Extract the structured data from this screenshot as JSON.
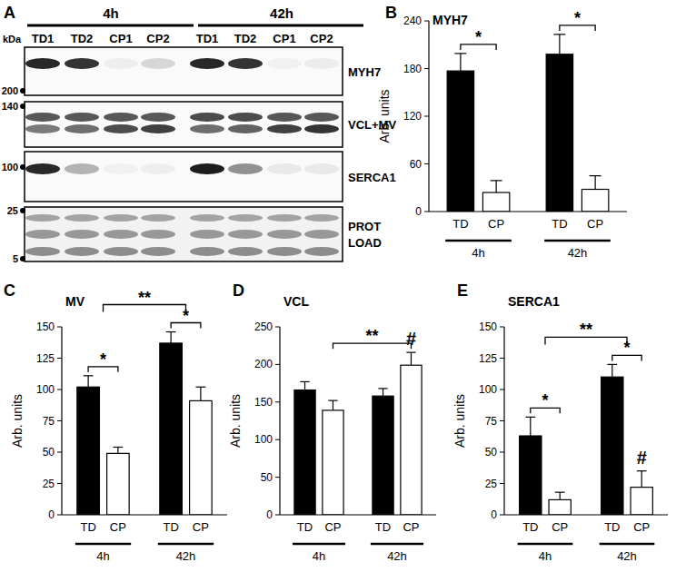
{
  "blot_panel": {
    "panel": "A",
    "headers": [
      "4h",
      "42h"
    ],
    "lanes": [
      "TD1",
      "TD2",
      "CP1",
      "CP2",
      "TD1",
      "TD2",
      "CP1",
      "CP2"
    ],
    "unit": "kDa",
    "markers": [
      200,
      140,
      100,
      25,
      5
    ],
    "rows": [
      [
        "MYH7"
      ],
      [
        "VCL+MV"
      ],
      [
        "SERCA1"
      ],
      [
        "PROT",
        "LOAD"
      ]
    ]
  },
  "chart_data": [
    {
      "type": "bar",
      "panel": "B",
      "title": "MYH7",
      "ylabel": "Arb. units",
      "categories": [
        "TD",
        "CP",
        "TD",
        "CP"
      ],
      "groups": [
        "4h",
        "42h"
      ],
      "values": [
        177,
        24,
        198,
        28
      ],
      "errors": [
        22,
        15,
        25,
        17
      ],
      "colors": [
        "#000000",
        "#ffffff",
        "#000000",
        "#ffffff"
      ],
      "ylim": [
        0,
        240
      ],
      "yticks": [
        0,
        60,
        120,
        180,
        240
      ],
      "grid": false,
      "annotations": [
        {
          "text": "*",
          "bars": [
            0,
            1
          ]
        },
        {
          "text": "*",
          "bars": [
            2,
            3
          ]
        }
      ]
    },
    {
      "type": "bar",
      "panel": "C",
      "title": "MV",
      "ylabel": "Arb. units",
      "categories": [
        "TD",
        "CP",
        "TD",
        "CP"
      ],
      "groups": [
        "4h",
        "42h"
      ],
      "values": [
        102,
        49,
        137,
        91
      ],
      "errors": [
        9,
        5,
        9,
        11
      ],
      "colors": [
        "#000000",
        "#ffffff",
        "#000000",
        "#ffffff"
      ],
      "ylim": [
        0,
        150
      ],
      "yticks": [
        0,
        25,
        50,
        75,
        100,
        125,
        150
      ],
      "grid": false,
      "annotations": [
        {
          "text": "*",
          "bars": [
            0,
            1
          ]
        },
        {
          "text": "*",
          "bars": [
            2,
            3
          ]
        },
        {
          "text": "**",
          "groups": [
            0,
            1
          ]
        }
      ]
    },
    {
      "type": "bar",
      "panel": "D",
      "title": "VCL",
      "ylabel": "Arb. units",
      "categories": [
        "TD",
        "CP",
        "TD",
        "CP"
      ],
      "groups": [
        "4h",
        "42h"
      ],
      "values": [
        166,
        139,
        158,
        199
      ],
      "errors": [
        11,
        13,
        10,
        17
      ],
      "colors": [
        "#000000",
        "#ffffff",
        "#000000",
        "#ffffff"
      ],
      "ylim": [
        0,
        250
      ],
      "yticks": [
        0,
        50,
        100,
        150,
        200,
        250
      ],
      "grid": false,
      "annotations": [
        {
          "text": "**",
          "bars": [
            1,
            3
          ]
        },
        {
          "text": "#",
          "at": 3
        }
      ]
    },
    {
      "type": "bar",
      "panel": "E",
      "title": "SERCA1",
      "ylabel": "Arb. units",
      "categories": [
        "TD",
        "CP",
        "TD",
        "CP"
      ],
      "groups": [
        "4h",
        "42h"
      ],
      "values": [
        63,
        12,
        110,
        22
      ],
      "errors": [
        15,
        6,
        10,
        13
      ],
      "colors": [
        "#000000",
        "#ffffff",
        "#000000",
        "#ffffff"
      ],
      "ylim": [
        0,
        150
      ],
      "yticks": [
        0,
        25,
        50,
        75,
        100,
        125,
        150
      ],
      "grid": false,
      "annotations": [
        {
          "text": "*",
          "bars": [
            0,
            1
          ]
        },
        {
          "text": "*",
          "bars": [
            2,
            3
          ]
        },
        {
          "text": "**",
          "groups": [
            0,
            1
          ]
        },
        {
          "text": "#",
          "at": 3
        }
      ]
    }
  ]
}
